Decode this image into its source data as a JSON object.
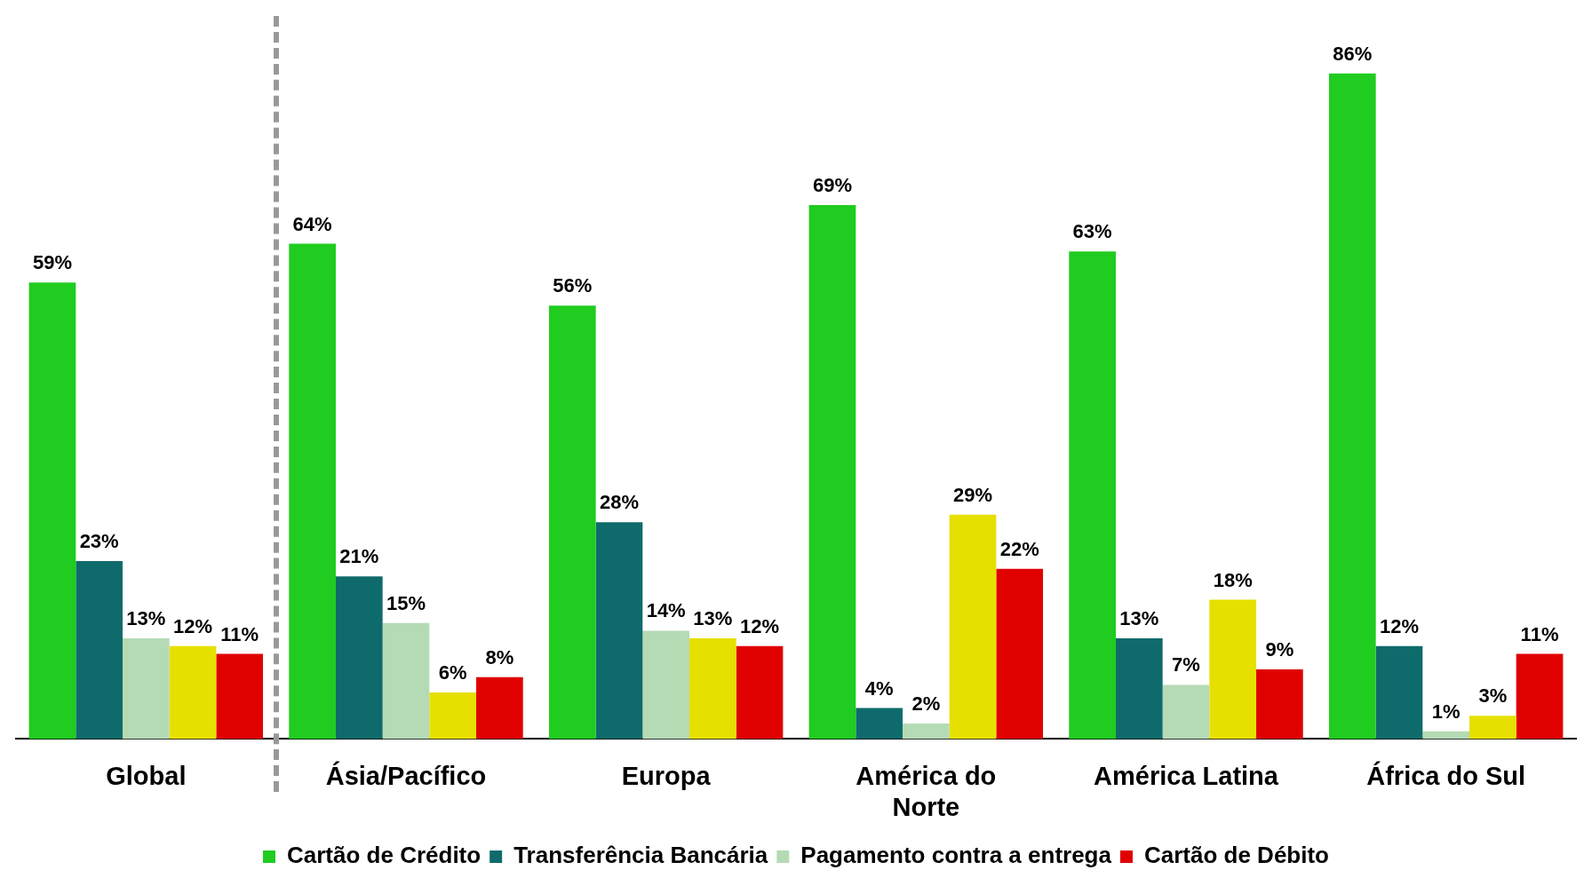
{
  "chart_data": {
    "type": "bar",
    "categories": [
      "Global",
      "Ásia/Pacífico",
      "Europa",
      "América do Norte",
      "América Latina",
      "África do Sul"
    ],
    "series": [
      {
        "name": "Cartão de Crédito",
        "color": "#1fcc1f",
        "values": [
          59,
          64,
          56,
          69,
          63,
          86
        ],
        "value_labels": [
          "59%",
          "64%",
          "56%",
          "69%",
          "63%",
          "86%"
        ]
      },
      {
        "name": "Transferência Bancária",
        "color": "#0f6b6b",
        "values": [
          23,
          21,
          28,
          4,
          13,
          12
        ],
        "value_labels": [
          "23%",
          "21%",
          "28%",
          "4%",
          "13%",
          "12%"
        ]
      },
      {
        "name": "Pagamento contra a entrega",
        "color": "#b5dbb5",
        "values": [
          13,
          15,
          14,
          2,
          7,
          1
        ],
        "value_labels": [
          "13%",
          "15%",
          "14%",
          "2%",
          "7%",
          "1%"
        ]
      },
      {
        "color": "#e6e000",
        "values": [
          12,
          6,
          13,
          29,
          18,
          3
        ],
        "value_labels": [
          "12%",
          "6%",
          "13%",
          "29%",
          "18%",
          "3%"
        ]
      },
      {
        "name": "Cartão de Débito",
        "color": "#e00000",
        "values": [
          11,
          8,
          12,
          22,
          9,
          11
        ],
        "value_labels": [
          "11%",
          "8%",
          "12%",
          "22%",
          "9%",
          "11%"
        ]
      }
    ],
    "legend": "bottom",
    "grid": false
  }
}
